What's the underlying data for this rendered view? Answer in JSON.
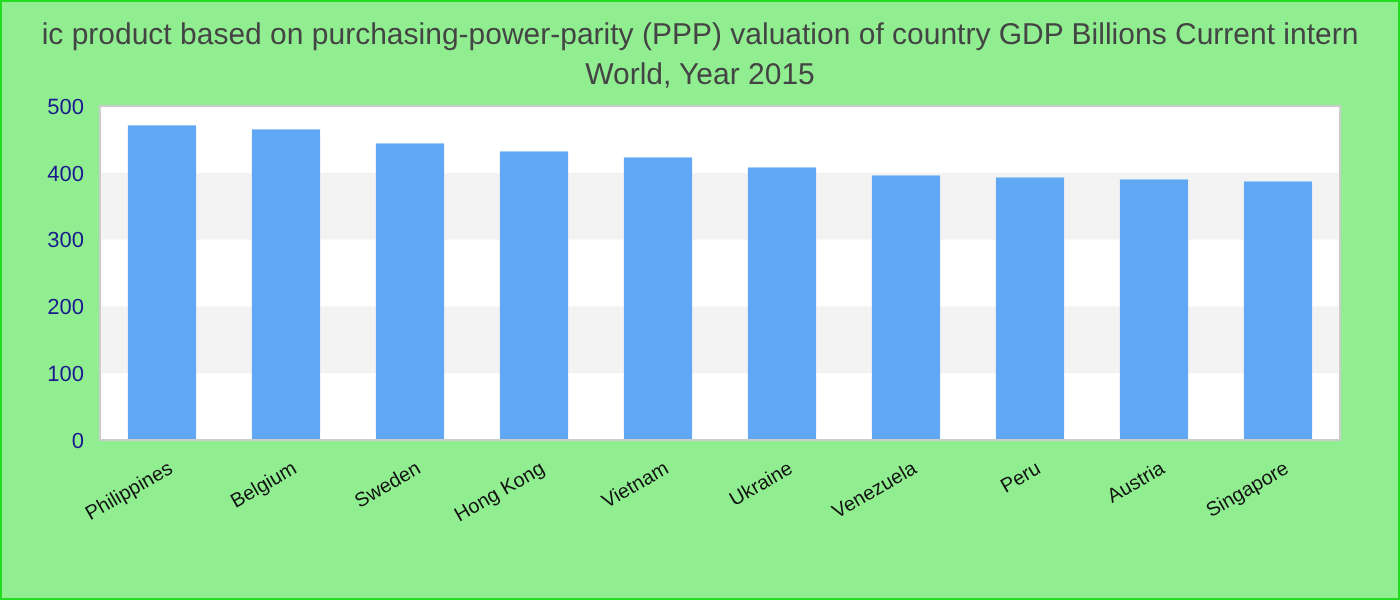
{
  "chart_data": {
    "type": "bar",
    "title": "ic product based on purchasing-power-parity (PPP) valuation of country GDP Billions Current intern",
    "subtitle": "World, Year 2015",
    "categories": [
      "Philippines",
      "Belgium",
      "Sweden",
      "Hong Kong",
      "Vietnam",
      "Ukraine",
      "Venezuela",
      "Peru",
      "Austria",
      "Singapore"
    ],
    "values": [
      471,
      465,
      444,
      432,
      423,
      408,
      396,
      393,
      390,
      387
    ],
    "color": "#60a8f4",
    "ylim": [
      0,
      500
    ],
    "yticks": [
      0,
      100,
      200,
      300,
      400,
      500
    ]
  }
}
